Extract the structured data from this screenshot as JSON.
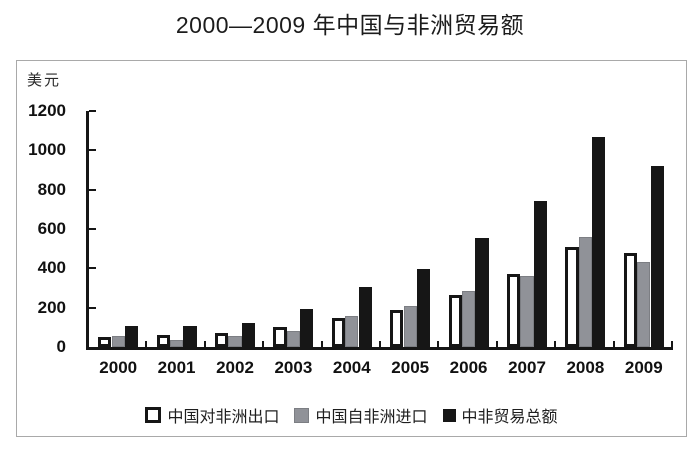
{
  "title": "2000—2009 年中国与非洲贸易额",
  "chart_data": {
    "type": "bar",
    "title": "2000—2009 年中国与非洲贸易额",
    "ylabel": "美元",
    "xlabel": "",
    "categories": [
      "2000",
      "2001",
      "2002",
      "2003",
      "2004",
      "2005",
      "2006",
      "2007",
      "2008",
      "2009"
    ],
    "series": [
      {
        "name": "中国对非洲出口",
        "swatch": "white-outlined",
        "fill": "#ffffff",
        "stroke": "#161616",
        "values": [
          50,
          60,
          70,
          100,
          148,
          188,
          265,
          372,
          508,
          480
        ]
      },
      {
        "name": "中国自非洲进口",
        "swatch": "gray",
        "fill": "#909298",
        "stroke": "#7c7e83",
        "values": [
          56,
          38,
          54,
          83,
          160,
          211,
          286,
          362,
          560,
          434
        ]
      },
      {
        "name": "中非贸易总额",
        "swatch": "black",
        "fill": "#161616",
        "stroke": "#161616",
        "values": [
          105,
          108,
          124,
          192,
          305,
          396,
          552,
          740,
          1068,
          918
        ]
      }
    ],
    "ylim": [
      0,
      1200
    ],
    "yticks": [
      0,
      200,
      400,
      600,
      800,
      1000,
      1200
    ],
    "grid": false,
    "legend_position": "bottom-inside",
    "axis_color": "#161616",
    "frame_border_color": "#a9a9a9"
  }
}
